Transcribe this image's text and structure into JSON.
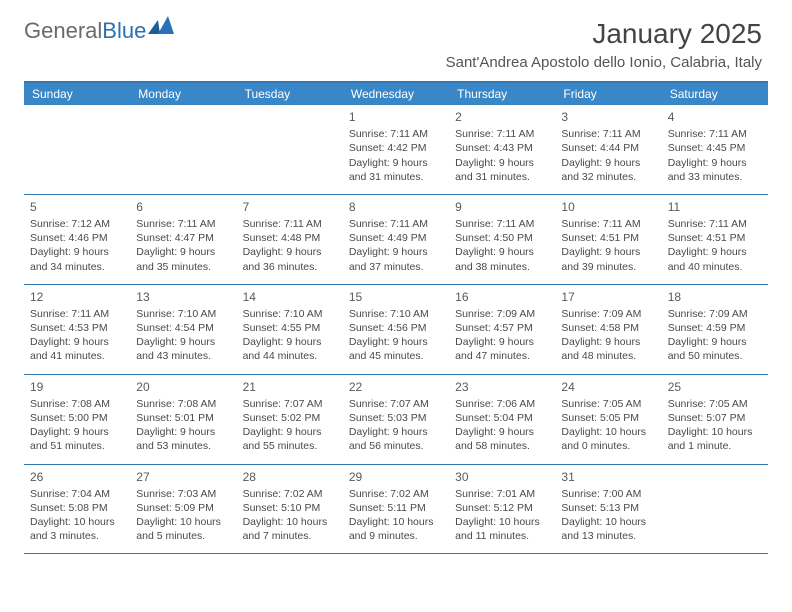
{
  "logo": {
    "part1": "General",
    "part2": "Blue"
  },
  "title": "January 2025",
  "subtitle": "Sant'Andrea Apostolo dello Ionio, Calabria, Italy",
  "colors": {
    "header_bg": "#3a87c7",
    "header_text": "#ffffff",
    "rule": "#3079b6",
    "body_text": "#4a4a4a",
    "title_text": "#444444",
    "logo_gray": "#6a6a6a",
    "logo_blue": "#2a72b5",
    "page_bg": "#ffffff"
  },
  "day_names": [
    "Sunday",
    "Monday",
    "Tuesday",
    "Wednesday",
    "Thursday",
    "Friday",
    "Saturday"
  ],
  "weeks": [
    [
      null,
      null,
      null,
      {
        "n": "1",
        "sr": "7:11 AM",
        "ss": "4:42 PM",
        "dl": "9 hours and 31 minutes."
      },
      {
        "n": "2",
        "sr": "7:11 AM",
        "ss": "4:43 PM",
        "dl": "9 hours and 31 minutes."
      },
      {
        "n": "3",
        "sr": "7:11 AM",
        "ss": "4:44 PM",
        "dl": "9 hours and 32 minutes."
      },
      {
        "n": "4",
        "sr": "7:11 AM",
        "ss": "4:45 PM",
        "dl": "9 hours and 33 minutes."
      }
    ],
    [
      {
        "n": "5",
        "sr": "7:12 AM",
        "ss": "4:46 PM",
        "dl": "9 hours and 34 minutes."
      },
      {
        "n": "6",
        "sr": "7:11 AM",
        "ss": "4:47 PM",
        "dl": "9 hours and 35 minutes."
      },
      {
        "n": "7",
        "sr": "7:11 AM",
        "ss": "4:48 PM",
        "dl": "9 hours and 36 minutes."
      },
      {
        "n": "8",
        "sr": "7:11 AM",
        "ss": "4:49 PM",
        "dl": "9 hours and 37 minutes."
      },
      {
        "n": "9",
        "sr": "7:11 AM",
        "ss": "4:50 PM",
        "dl": "9 hours and 38 minutes."
      },
      {
        "n": "10",
        "sr": "7:11 AM",
        "ss": "4:51 PM",
        "dl": "9 hours and 39 minutes."
      },
      {
        "n": "11",
        "sr": "7:11 AM",
        "ss": "4:51 PM",
        "dl": "9 hours and 40 minutes."
      }
    ],
    [
      {
        "n": "12",
        "sr": "7:11 AM",
        "ss": "4:53 PM",
        "dl": "9 hours and 41 minutes."
      },
      {
        "n": "13",
        "sr": "7:10 AM",
        "ss": "4:54 PM",
        "dl": "9 hours and 43 minutes."
      },
      {
        "n": "14",
        "sr": "7:10 AM",
        "ss": "4:55 PM",
        "dl": "9 hours and 44 minutes."
      },
      {
        "n": "15",
        "sr": "7:10 AM",
        "ss": "4:56 PM",
        "dl": "9 hours and 45 minutes."
      },
      {
        "n": "16",
        "sr": "7:09 AM",
        "ss": "4:57 PM",
        "dl": "9 hours and 47 minutes."
      },
      {
        "n": "17",
        "sr": "7:09 AM",
        "ss": "4:58 PM",
        "dl": "9 hours and 48 minutes."
      },
      {
        "n": "18",
        "sr": "7:09 AM",
        "ss": "4:59 PM",
        "dl": "9 hours and 50 minutes."
      }
    ],
    [
      {
        "n": "19",
        "sr": "7:08 AM",
        "ss": "5:00 PM",
        "dl": "9 hours and 51 minutes."
      },
      {
        "n": "20",
        "sr": "7:08 AM",
        "ss": "5:01 PM",
        "dl": "9 hours and 53 minutes."
      },
      {
        "n": "21",
        "sr": "7:07 AM",
        "ss": "5:02 PM",
        "dl": "9 hours and 55 minutes."
      },
      {
        "n": "22",
        "sr": "7:07 AM",
        "ss": "5:03 PM",
        "dl": "9 hours and 56 minutes."
      },
      {
        "n": "23",
        "sr": "7:06 AM",
        "ss": "5:04 PM",
        "dl": "9 hours and 58 minutes."
      },
      {
        "n": "24",
        "sr": "7:05 AM",
        "ss": "5:05 PM",
        "dl": "10 hours and 0 minutes."
      },
      {
        "n": "25",
        "sr": "7:05 AM",
        "ss": "5:07 PM",
        "dl": "10 hours and 1 minute."
      }
    ],
    [
      {
        "n": "26",
        "sr": "7:04 AM",
        "ss": "5:08 PM",
        "dl": "10 hours and 3 minutes."
      },
      {
        "n": "27",
        "sr": "7:03 AM",
        "ss": "5:09 PM",
        "dl": "10 hours and 5 minutes."
      },
      {
        "n": "28",
        "sr": "7:02 AM",
        "ss": "5:10 PM",
        "dl": "10 hours and 7 minutes."
      },
      {
        "n": "29",
        "sr": "7:02 AM",
        "ss": "5:11 PM",
        "dl": "10 hours and 9 minutes."
      },
      {
        "n": "30",
        "sr": "7:01 AM",
        "ss": "5:12 PM",
        "dl": "10 hours and 11 minutes."
      },
      {
        "n": "31",
        "sr": "7:00 AM",
        "ss": "5:13 PM",
        "dl": "10 hours and 13 minutes."
      },
      null
    ]
  ],
  "labels": {
    "sunrise": "Sunrise:",
    "sunset": "Sunset:",
    "daylight": "Daylight:"
  }
}
